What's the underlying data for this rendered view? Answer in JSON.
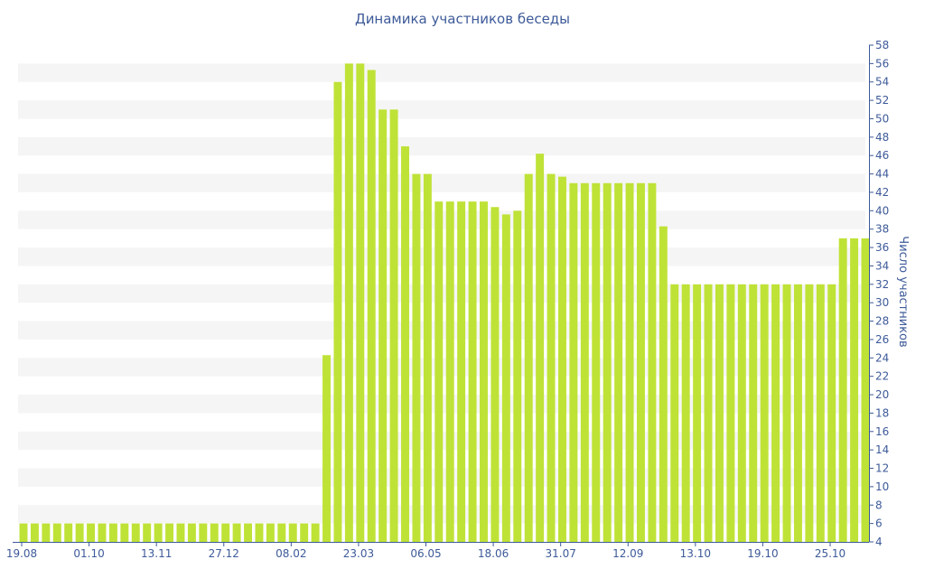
{
  "chart_data": {
    "type": "bar",
    "title": "Динамика участников беседы",
    "xlabel": "",
    "ylabel": "Число участников",
    "ylim": [
      4,
      58
    ],
    "y_ticks": [
      4,
      6,
      8,
      10,
      12,
      14,
      16,
      18,
      20,
      22,
      24,
      26,
      28,
      30,
      32,
      34,
      36,
      38,
      40,
      42,
      44,
      46,
      48,
      50,
      52,
      54,
      56,
      58
    ],
    "y_axis_position": "right",
    "x_tick_labels": [
      "19.08",
      "01.10",
      "13.11",
      "27.12",
      "08.02",
      "23.03",
      "06.05",
      "18.06",
      "31.07",
      "12.09",
      "13.10",
      "19.10",
      "25.10"
    ],
    "grid": "alternating horizontal bands",
    "values": [
      6,
      6,
      6,
      6,
      6,
      6,
      6,
      6,
      6,
      6,
      6,
      6,
      6,
      6,
      6,
      6,
      6,
      6,
      6,
      6,
      6,
      6,
      6,
      6,
      6,
      6,
      6,
      24.3,
      54,
      56,
      56,
      55.3,
      51,
      51,
      47,
      44,
      44,
      41,
      41,
      41,
      41,
      41,
      40.4,
      39.6,
      40,
      44,
      46.2,
      44,
      43.7,
      43,
      43,
      43,
      43,
      43,
      43,
      43,
      43,
      38.3,
      32,
      32,
      32,
      32,
      32,
      32,
      32,
      32,
      32,
      32,
      32,
      32,
      32,
      32,
      32,
      37,
      37,
      37
    ]
  }
}
